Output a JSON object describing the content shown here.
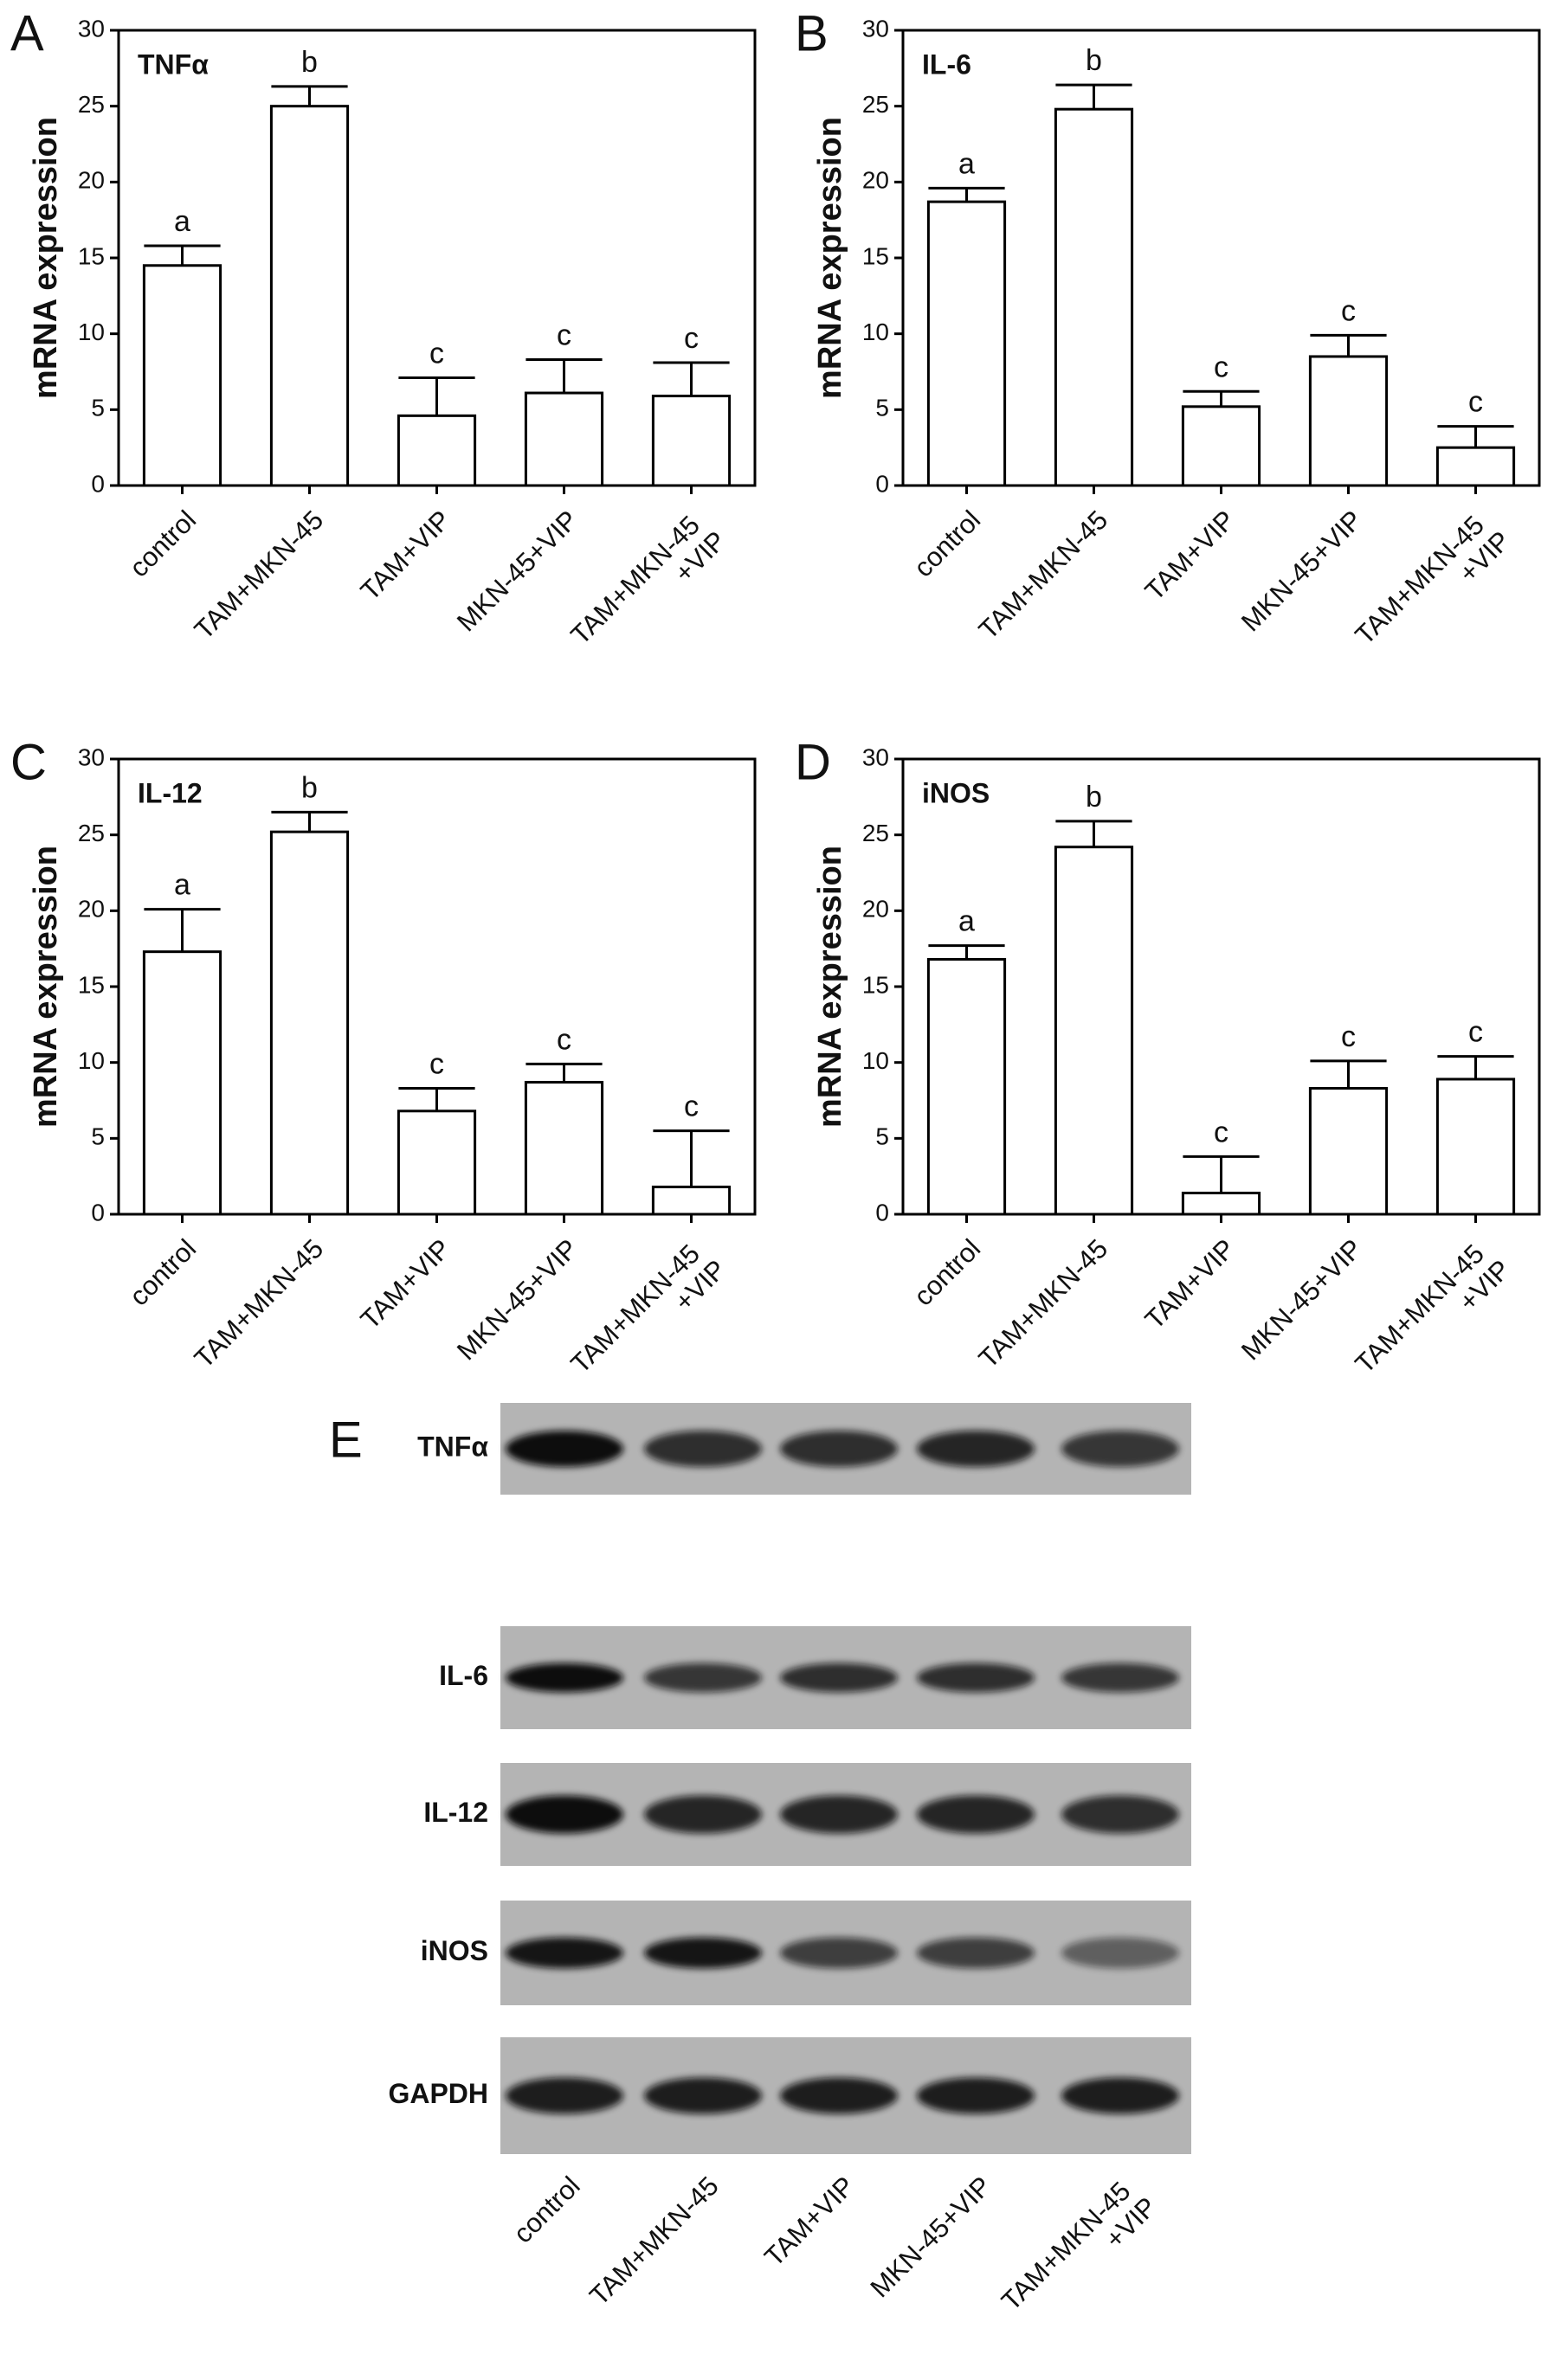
{
  "chart_data": [
    {
      "type": "bar",
      "panel": "A",
      "title": "TNFα",
      "ylabel": "mRNA expression",
      "categories": [
        "control",
        "TAM+MKN-45",
        "TAM+VIP",
        "MKN-45+VIP",
        "TAM+MKN-45 +VIP"
      ],
      "values": [
        14.5,
        25,
        4.6,
        6.1,
        5.9
      ],
      "errors": [
        1.3,
        1.3,
        2.5,
        2.2,
        2.2
      ],
      "annotations": [
        "a",
        "b",
        "c",
        "c",
        "c"
      ],
      "ylim": [
        0,
        30
      ],
      "yticks": [
        0,
        5,
        10,
        15,
        20,
        25,
        30
      ],
      "color": "#ffffff"
    },
    {
      "type": "bar",
      "panel": "B",
      "title": "IL-6",
      "ylabel": "mRNA expression",
      "categories": [
        "control",
        "TAM+MKN-45",
        "TAM+VIP",
        "MKN-45+VIP",
        "TAM+MKN-45 +VIP"
      ],
      "values": [
        18.7,
        24.8,
        5.2,
        8.5,
        2.5
      ],
      "errors": [
        0.9,
        1.6,
        1.0,
        1.4,
        1.4
      ],
      "annotations": [
        "a",
        "b",
        "c",
        "c",
        "c"
      ],
      "ylim": [
        0,
        30
      ],
      "yticks": [
        0,
        5,
        10,
        15,
        20,
        25,
        30
      ],
      "color": "#ffffff"
    },
    {
      "type": "bar",
      "panel": "C",
      "title": "IL-12",
      "ylabel": "mRNA expression",
      "categories": [
        "control",
        "TAM+MKN-45",
        "TAM+VIP",
        "MKN-45+VIP",
        "TAM+MKN-45 +VIP"
      ],
      "values": [
        17.3,
        25.2,
        6.8,
        8.7,
        1.8
      ],
      "errors": [
        2.8,
        1.3,
        1.5,
        1.2,
        3.7
      ],
      "annotations": [
        "a",
        "b",
        "c",
        "c",
        "c"
      ],
      "ylim": [
        0,
        30
      ],
      "yticks": [
        0,
        5,
        10,
        15,
        20,
        25,
        30
      ],
      "color": "#ffffff"
    },
    {
      "type": "bar",
      "panel": "D",
      "title": "iNOS",
      "ylabel": "mRNA expression",
      "categories": [
        "control",
        "TAM+MKN-45",
        "TAM+VIP",
        "MKN-45+VIP",
        "TAM+MKN-45 +VIP"
      ],
      "values": [
        16.8,
        24.2,
        1.4,
        8.3,
        8.9
      ],
      "errors": [
        0.9,
        1.7,
        2.4,
        1.8,
        1.5
      ],
      "annotations": [
        "a",
        "b",
        "c",
        "c",
        "c"
      ],
      "ylim": [
        0,
        30
      ],
      "yticks": [
        0,
        5,
        10,
        15,
        20,
        25,
        30
      ],
      "color": "#ffffff"
    }
  ],
  "blot": {
    "panel": "E",
    "rows": [
      "TNFα",
      "IL-6",
      "IL-12",
      "iNOS",
      "GAPDH"
    ],
    "lanes": [
      "control",
      "TAM+MKN-45",
      "TAM+VIP",
      "MKN-45+VIP",
      "TAM+MKN-45 +VIP"
    ]
  }
}
